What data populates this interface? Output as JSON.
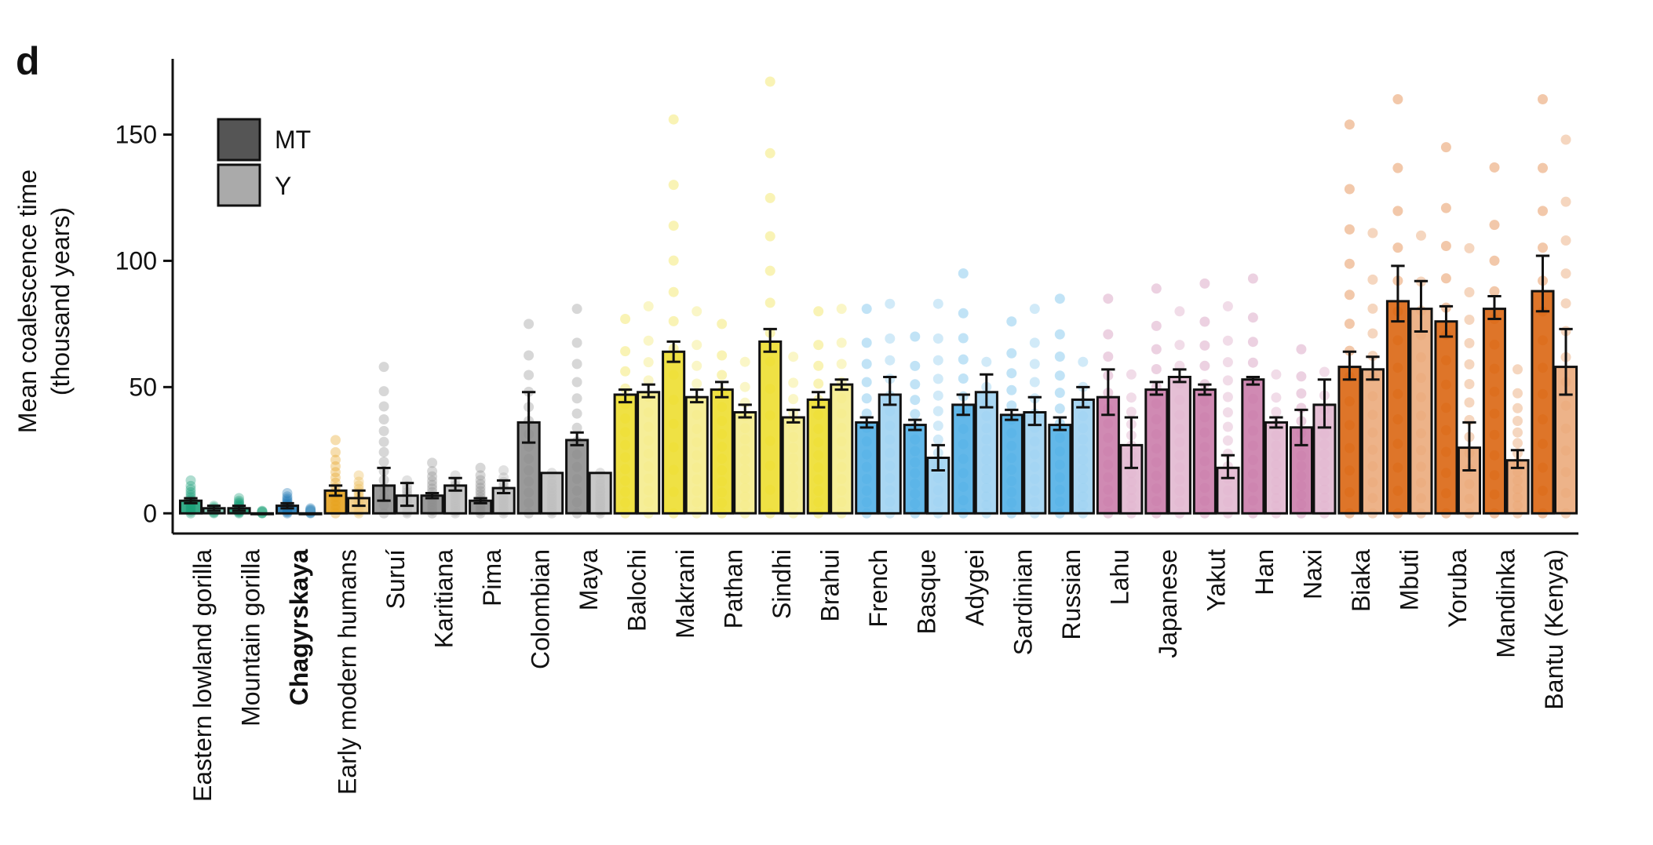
{
  "panel_label": "d",
  "legend": [
    {
      "label": "MT",
      "color": "#555555"
    },
    {
      "label": "Y",
      "color": "#aaaaaa"
    }
  ],
  "chart_data": {
    "type": "bar",
    "ylabel_lines": [
      "Mean coalescence time",
      "(thousand years)"
    ],
    "ylim": [
      -8,
      180
    ],
    "yticks": [
      0,
      50,
      100,
      150
    ],
    "grid": false,
    "legend_position": "top-left",
    "bold_categories": [
      "Chagyrskaya"
    ],
    "categories": [
      "Eastern lowland gorilla",
      "Mountain gorilla",
      "Chagyrskaya",
      "Early modern humans",
      "Suruí",
      "Karitiana",
      "Pima",
      "Colombian",
      "Maya",
      "Balochi",
      "Makrani",
      "Pathan",
      "Sindhi",
      "Brahui",
      "French",
      "Basque",
      "Adygei",
      "Sardinian",
      "Russian",
      "Lahu",
      "Japanese",
      "Yakut",
      "Han",
      "Naxi",
      "Biaka",
      "Mbuti",
      "Yoruba",
      "Mandinka",
      "Bantu (Kenya)"
    ],
    "group_colors": {
      "gorilla": "#1a9e77",
      "neanderthal": "#1f78b4",
      "early": "#e6a11a",
      "americas": "#8c8c8c",
      "central_south_asia": "#eddd2a",
      "europe": "#4daee6",
      "east_asia": "#c97aa8",
      "africa": "#d9620b"
    },
    "category_groups": [
      "gorilla",
      "gorilla",
      "neanderthal",
      "early",
      "americas",
      "americas",
      "americas",
      "americas",
      "americas",
      "central_south_asia",
      "central_south_asia",
      "central_south_asia",
      "central_south_asia",
      "central_south_asia",
      "europe",
      "europe",
      "europe",
      "europe",
      "europe",
      "east_asia",
      "east_asia",
      "east_asia",
      "east_asia",
      "east_asia",
      "africa",
      "africa",
      "africa",
      "africa",
      "africa"
    ],
    "series": [
      {
        "name": "MT",
        "values": [
          5,
          2,
          3,
          9,
          11,
          7,
          5,
          36,
          29,
          47,
          64,
          49,
          68,
          45,
          36,
          35,
          43,
          39,
          35,
          46,
          49,
          49,
          53,
          34,
          58,
          84,
          76,
          81,
          88
        ],
        "err_low": [
          4,
          1,
          2,
          7,
          5,
          6,
          4,
          28,
          27,
          44,
          60,
          46,
          64,
          42,
          34,
          33,
          39,
          37,
          33,
          39,
          47,
          47,
          51,
          27,
          53,
          76,
          70,
          77,
          80
        ],
        "err_high": [
          6,
          3,
          4,
          11,
          18,
          8,
          6,
          48,
          32,
          49,
          68,
          52,
          73,
          48,
          38,
          37,
          47,
          41,
          38,
          57,
          52,
          51,
          54,
          41,
          64,
          98,
          82,
          86,
          102
        ]
      },
      {
        "name": "Y",
        "values": [
          2,
          0,
          0,
          6,
          7,
          11,
          10,
          16,
          16,
          48,
          46,
          40,
          38,
          51,
          47,
          22,
          48,
          40,
          45,
          27,
          54,
          18,
          36,
          43,
          57,
          81,
          26,
          21,
          58
        ],
        "err_low": [
          1,
          0,
          0,
          3,
          3,
          9,
          8,
          16,
          16,
          46,
          44,
          38,
          36,
          49,
          43,
          17,
          42,
          35,
          42,
          18,
          52,
          14,
          34,
          34,
          53,
          72,
          17,
          18,
          47
        ],
        "err_high": [
          3,
          0,
          0,
          9,
          12,
          14,
          13,
          16,
          16,
          51,
          49,
          43,
          41,
          53,
          54,
          27,
          55,
          46,
          50,
          38,
          57,
          23,
          38,
          53,
          62,
          92,
          36,
          25,
          73
        ]
      }
    ],
    "points_max": {
      "MT": [
        13,
        6,
        8,
        29,
        58,
        20,
        18,
        75,
        81,
        77,
        156,
        75,
        171,
        80,
        81,
        70,
        95,
        76,
        85,
        85,
        89,
        91,
        93,
        65,
        154,
        164,
        145,
        137,
        164
      ],
      "Y": [
        3,
        1,
        2,
        15,
        13,
        15,
        17,
        16,
        16,
        82,
        80,
        60,
        62,
        81,
        83,
        83,
        60,
        81,
        60,
        55,
        80,
        82,
        55,
        56,
        111,
        110,
        105,
        57,
        148
      ]
    }
  }
}
